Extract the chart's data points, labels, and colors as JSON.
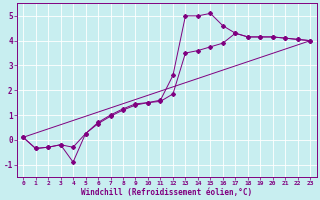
{
  "xlabel": "Windchill (Refroidissement éolien,°C)",
  "bg_color": "#c8eef0",
  "grid_color": "#b0d8dc",
  "line_color": "#800080",
  "xlim": [
    -0.5,
    23.5
  ],
  "ylim": [
    -1.5,
    5.5
  ],
  "xticks": [
    0,
    1,
    2,
    3,
    4,
    5,
    6,
    7,
    8,
    9,
    10,
    11,
    12,
    13,
    14,
    15,
    16,
    17,
    18,
    19,
    20,
    21,
    22,
    23
  ],
  "yticks": [
    -1,
    0,
    1,
    2,
    3,
    4,
    5
  ],
  "line1_x": [
    0,
    1,
    2,
    3,
    4,
    5,
    6,
    7,
    8,
    9,
    10,
    11,
    12,
    13,
    14,
    15,
    16,
    17,
    18,
    19,
    20,
    21,
    22,
    23
  ],
  "line1_y": [
    0.1,
    -0.35,
    -0.3,
    -0.2,
    -0.9,
    0.25,
    0.7,
    1.0,
    1.25,
    1.45,
    1.5,
    1.6,
    2.6,
    5.0,
    5.0,
    5.1,
    4.6,
    4.3,
    4.15,
    4.15,
    4.15,
    4.1,
    4.05,
    4.0
  ],
  "line2_x": [
    0,
    1,
    2,
    3,
    4,
    5,
    6,
    7,
    8,
    9,
    10,
    11,
    12,
    13,
    14,
    15,
    16,
    17,
    18,
    19,
    20,
    21,
    22,
    23
  ],
  "line2_y": [
    0.1,
    -0.35,
    -0.3,
    -0.2,
    -0.3,
    0.25,
    0.65,
    0.95,
    1.2,
    1.4,
    1.5,
    1.55,
    1.85,
    3.5,
    3.6,
    3.75,
    3.9,
    4.3,
    4.15,
    4.15,
    4.15,
    4.1,
    4.05,
    4.0
  ],
  "line3_x": [
    0,
    23
  ],
  "line3_y": [
    0.1,
    4.0
  ]
}
